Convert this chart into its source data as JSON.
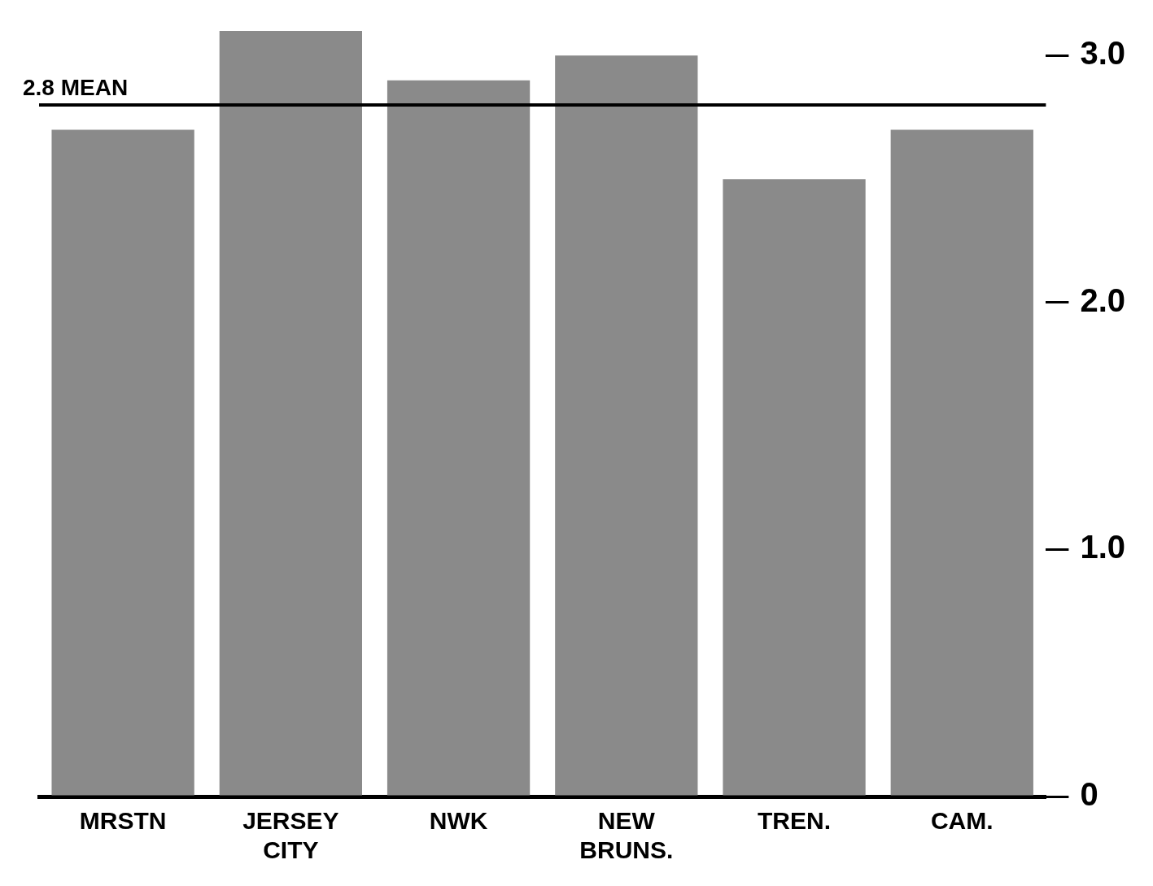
{
  "chart_data": {
    "type": "bar",
    "categories": [
      "MRSTN",
      "JERSEY CITY",
      "NWK",
      "NEW BRUNS.",
      "TREN.",
      "CAM."
    ],
    "values": [
      2.7,
      3.1,
      2.9,
      3.0,
      2.5,
      2.7
    ],
    "color": "#8a8a8a",
    "ylim": [
      0,
      3.1
    ],
    "yticks": [
      0,
      {
        "value": 1,
        "label": "1.0"
      },
      {
        "value": 2,
        "label": "2.0"
      },
      {
        "value": 3,
        "label": "3.0"
      }
    ],
    "ref_lines": [
      {
        "axis": "y",
        "value": 2.8,
        "label": "2.8 MEAN",
        "color": "#000000"
      }
    ],
    "grid": false,
    "legend": false
  }
}
